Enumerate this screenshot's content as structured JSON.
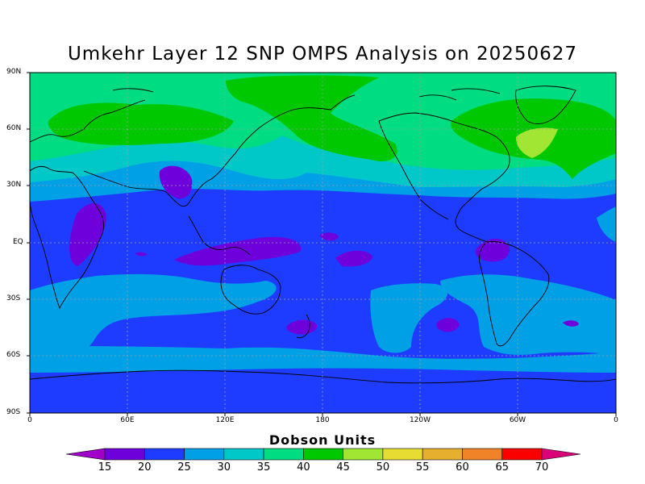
{
  "title": "Umkehr Layer 12 SNP OMPS Analysis on 20250627",
  "lat_labels": [
    "90N",
    "60N",
    "30N",
    "EQ",
    "30S",
    "60S",
    "90S"
  ],
  "lon_labels": [
    "0",
    "60E",
    "120E",
    "180",
    "120W",
    "60W",
    "0"
  ],
  "colorbar": {
    "title": "Dobson Units",
    "labels": [
      "15",
      "20",
      "25",
      "30",
      "35",
      "40",
      "45",
      "50",
      "55",
      "60",
      "65",
      "70"
    ],
    "colors": [
      "#a000c8",
      "#6e00dc",
      "#1e3cff",
      "#00a0e6",
      "#00c8c8",
      "#00dc82",
      "#00c800",
      "#a0e632",
      "#e6dc32",
      "#e6af2d",
      "#f08228",
      "#fa0000",
      "#dc0078"
    ]
  },
  "colors": {
    "band_25": "#1e3cff",
    "band_30": "#00a0e6",
    "band_35": "#00c8c8",
    "band_40": "#00dc82",
    "band_45": "#00c800",
    "band_50": "#a0e632",
    "band_20": "#6e00dc"
  }
}
